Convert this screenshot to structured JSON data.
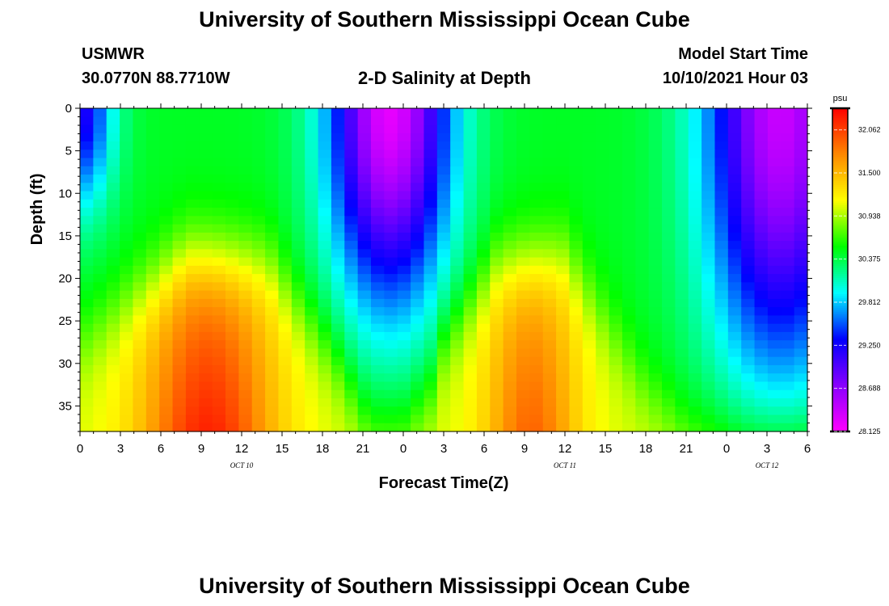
{
  "page": {
    "title": "University of Southern Mississippi Ocean Cube",
    "station": "USMWR",
    "coords": "30.0770N  88.7710W",
    "chart_heading": "2-D Salinity at Depth",
    "model_label": "Model Start Time",
    "model_time": "10/10/2021 Hour 03",
    "footer_title": "University of Southern Mississippi Ocean Cube"
  },
  "colors": {
    "ramp": [
      "#ff00ff",
      "#8800ff",
      "#0000ff",
      "#00ffff",
      "#00ff00",
      "#ffff00",
      "#ff8800",
      "#ff0000"
    ]
  },
  "chart_data": {
    "type": "heatmap",
    "title": "2-D Salinity at Depth",
    "xlabel": "Forecast Time(Z)",
    "ylabel": "Depth (ft)",
    "xlim": [
      0,
      54
    ],
    "ylim": [
      38,
      0
    ],
    "x_ticks": [
      0,
      3,
      6,
      9,
      12,
      15,
      18,
      21,
      24,
      27,
      30,
      33,
      36,
      39,
      42,
      45,
      48,
      51,
      54
    ],
    "x_tick_labels": [
      "0",
      "3",
      "6",
      "9",
      "12",
      "15",
      "18",
      "21",
      "0",
      "3",
      "6",
      "9",
      "12",
      "15",
      "18",
      "21",
      "0",
      "3",
      "6"
    ],
    "y_ticks": [
      0,
      5,
      10,
      15,
      20,
      25,
      30,
      35
    ],
    "y_tick_labels": [
      "0",
      "5",
      "10",
      "15",
      "20",
      "25",
      "30",
      "35"
    ],
    "date_labels": [
      {
        "x": 12,
        "text": "OCT  10"
      },
      {
        "x": 36,
        "text": "OCT  11"
      },
      {
        "x": 51,
        "text": "OCT  12"
      }
    ],
    "colorbar": {
      "unit": "psu",
      "min": 28.125,
      "max": 32.344,
      "ticks": [
        "32.062",
        "31.500",
        "30.938",
        "30.375",
        "29.812",
        "29.250",
        "28.688",
        "28.125"
      ]
    },
    "grid_dims": {
      "nx": 55,
      "nt": 39
    },
    "depth_min_profile": {
      "hours": [
        0,
        4,
        8,
        14,
        19,
        21.5,
        24,
        26,
        27,
        31,
        36,
        42,
        45,
        49,
        53,
        54
      ],
      "depth_ft": [
        28,
        22,
        17,
        18,
        30,
        38,
        38,
        34,
        28,
        18,
        17,
        33,
        38,
        40,
        40,
        40
      ]
    },
    "fresh_low_cells": [
      {
        "center_hour": 0,
        "width_hours": 2.5,
        "depth_ft": 12,
        "value": 29.2
      },
      {
        "center_hour": 23,
        "width_hours": 4.5,
        "depth_ft": 23,
        "value": 28.25
      },
      {
        "center_hour": 52,
        "width_hours": 5.5,
        "depth_ft": 31,
        "value": 28.4
      }
    ],
    "salty_high_cells": [
      {
        "center_hour": 9.5,
        "width_hours": 5,
        "value": 32.2
      },
      {
        "center_hour": 33.5,
        "width_hours": 3.5,
        "value": 31.9
      }
    ]
  }
}
